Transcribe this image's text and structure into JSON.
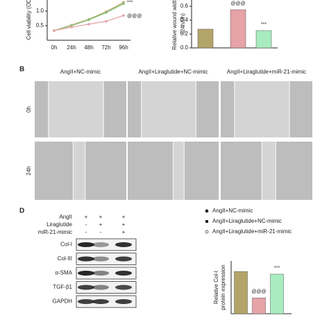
{
  "chart_data": [
    {
      "type": "line",
      "ylabel": "Cell viability (OD)",
      "categories": [
        "0h",
        "24h",
        "48h",
        "72h",
        "96h"
      ],
      "series": [
        {
          "color": "#b3a46a",
          "values": [
            0.33,
            0.52,
            0.72,
            0.98,
            1.3
          ]
        },
        {
          "color": "#8cc47a",
          "values": [
            0.33,
            0.5,
            0.7,
            0.95,
            1.25
          ]
        },
        {
          "color": "#e6a3a8",
          "values": [
            0.33,
            0.45,
            0.55,
            0.65,
            0.85
          ]
        }
      ],
      "annotations": [
        "***",
        "@@@"
      ],
      "ylim": [
        0,
        1.5
      ],
      "yticks": [
        0.5,
        {
          "value": 1,
          "label": "1.0"
        }
      ]
    },
    {
      "type": "bar",
      "ylabel": "Relative wound width",
      "ylabel2": "(24h/0h)",
      "values": [
        0.27,
        0.55,
        0.25
      ],
      "colors": [
        "#b3a46a",
        "#e6a3a8",
        "#a9ecc0"
      ],
      "annotations": [
        "",
        "@@@",
        "***"
      ],
      "ylim": [
        0,
        0.7
      ],
      "yticks": [
        {
          "value": 0,
          "label": "0.0"
        },
        0.2,
        0.4,
        0.6
      ]
    },
    {
      "type": "bar",
      "ylabel": "Relative Col-I",
      "ylabel2": "protein expression",
      "values": [
        1.6,
        0.6,
        1.5
      ],
      "colors": [
        "#b3a46a",
        "#e6a3a8",
        "#a9ecc0"
      ],
      "annotations": [
        "",
        "@@@",
        "***"
      ],
      "ylim": [
        0,
        2.0
      ]
    }
  ],
  "panel_b": {
    "label": "B",
    "columns": [
      "AngII+NC-mimic",
      "AngII+Liraglutide+NC-mimic",
      "AngII+Liraglutide+miR-21-mimic"
    ],
    "rows": [
      "0h",
      "24h"
    ]
  },
  "panel_d": {
    "label": "D",
    "treatments": [
      {
        "name": "AngII",
        "signs": [
          "+",
          "+",
          "+"
        ]
      },
      {
        "name": "Liraglutide",
        "signs": [
          "-",
          "+",
          "+"
        ]
      },
      {
        "name": "miR-21-mimic",
        "signs": [
          "-",
          "-",
          "+"
        ]
      }
    ],
    "bands": [
      "Col-I",
      "Col-III",
      "α-SMA",
      "TGF-β1",
      "GAPDH"
    ],
    "legend": [
      "AngII+NC-mimic",
      "AngII+Liraglutide+NC-mimic",
      "AngII+Liraglutide+miR-21-mimic"
    ]
  }
}
